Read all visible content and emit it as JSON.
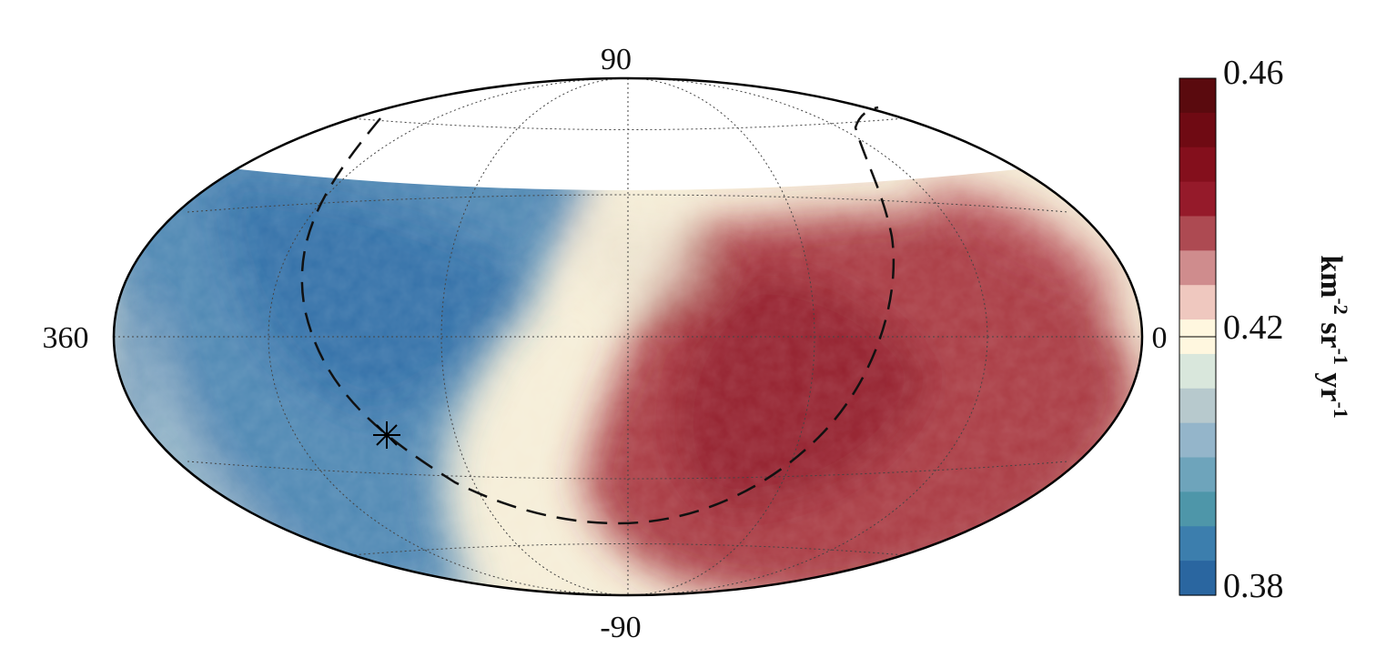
{
  "map": {
    "projection": "Hammer-Aitoff",
    "grid_lines": "dotted",
    "lon_labels": {
      "left": "360",
      "right": "0"
    },
    "lat_labels": {
      "top": "90",
      "bottom": "-90"
    },
    "unmapped_region_color": "#ffffff"
  },
  "colorbar": {
    "tick_top": "0.46",
    "tick_mid": "0.42",
    "tick_bottom": "0.38",
    "unit_label": "km-2 sr-1 yr-1",
    "vmin": 0.38,
    "vmax": 0.46,
    "colors_top_to_bottom": [
      "#5a0a0e",
      "#6f0a13",
      "#840f1c",
      "#951a2a",
      "#ad4a52",
      "#cf8c8d",
      "#efc8bf",
      "#fff7df",
      "#d9e7dc",
      "#b7c9cd",
      "#94b5ca",
      "#6ea4bb",
      "#4e96a9",
      "#3c7ead",
      "#2a66a0"
    ]
  },
  "overlays": {
    "dashed_curve": "dashed-outline",
    "marker": "asterisk-marker"
  }
}
